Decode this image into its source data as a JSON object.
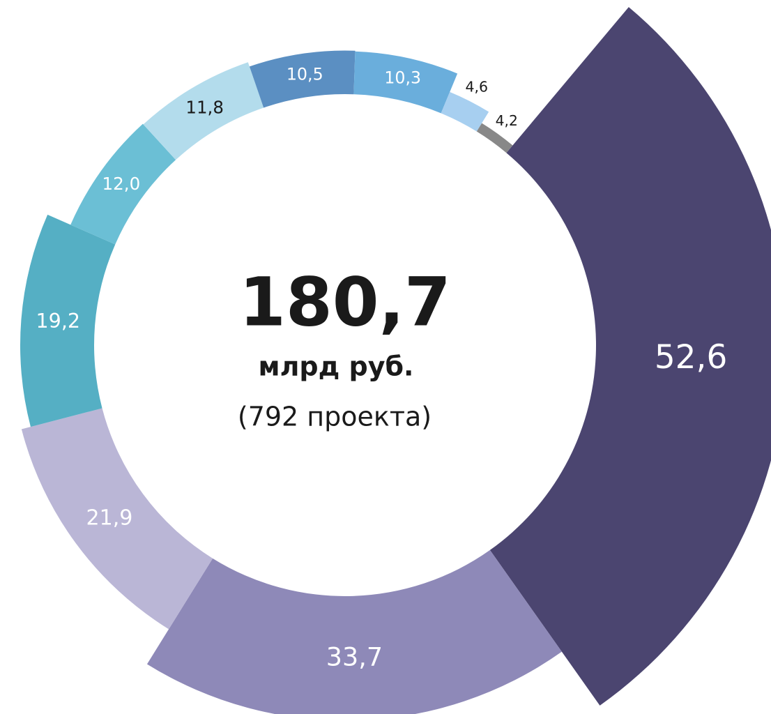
{
  "chart_data": {
    "type": "radial_donut",
    "center": {
      "total": "180,7",
      "unit": "млрд руб.",
      "note": "(792 проекта)"
    },
    "values": [
      52.6,
      33.7,
      21.9,
      19.2,
      12.0,
      11.8,
      10.5,
      10.3,
      4.6,
      4.2
    ],
    "value_labels": [
      "52,6",
      "33,7",
      "21,9",
      "19,2",
      "12,0",
      "11,8",
      "10,5",
      "10,3",
      "4,6",
      "4,2"
    ],
    "colors": [
      "#4b4570",
      "#8e89b8",
      "#bab6d6",
      "#55afc4",
      "#6bbfd5",
      "#b3dcec",
      "#5b8fc2",
      "#6aaedc",
      "#a7cff0",
      "#888888"
    ],
    "label_colors": [
      "#ffffff",
      "#ffffff",
      "#ffffff",
      "#ffffff",
      "#ffffff",
      "#1a1a1a",
      "#ffffff",
      "#ffffff",
      "#1a1a1a",
      "#1a1a1a"
    ]
  }
}
